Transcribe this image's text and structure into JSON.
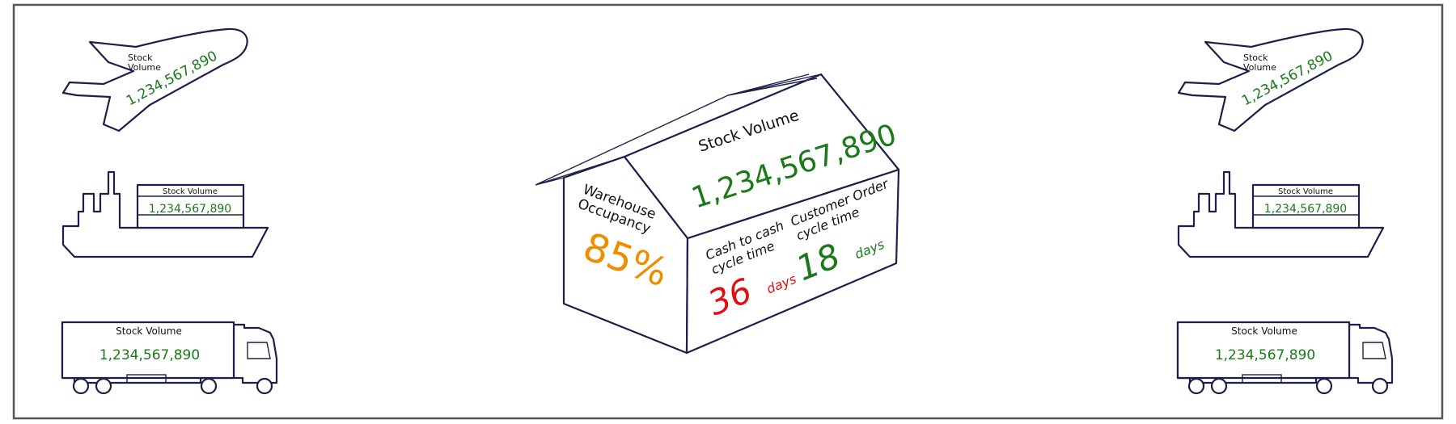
{
  "colors": {
    "outline": "#1c1f4a",
    "value_green": "#1a7a1a",
    "occupancy_orange": "#f08c00",
    "alert_red": "#e01010",
    "text_dark": "#111111",
    "frame": "#555555"
  },
  "icons": [
    "airplane-icon",
    "ship-icon",
    "truck-icon",
    "warehouse-icon"
  ],
  "transport": {
    "left": {
      "airplane": {
        "label": "Stock\nVolume",
        "value": "1,234,567,890"
      },
      "ship": {
        "label": "Stock Volume",
        "value": "1,234,567,890"
      },
      "truck": {
        "label": "Stock Volume",
        "value": "1,234,567,890"
      }
    },
    "right": {
      "airplane": {
        "label": "Stock\nVolume",
        "value": "1,234,567,890"
      },
      "ship": {
        "label": "Stock Volume",
        "value": "1,234,567,890"
      },
      "truck": {
        "label": "Stock Volume",
        "value": "1,234,567,890"
      }
    }
  },
  "warehouse": {
    "roof_label": "Stock Volume",
    "roof_value": "1,234,567,890",
    "occupancy_label": "Warehouse\nOccupancy",
    "occupancy_value": "85%",
    "cash_cycle_label": "Cash to cash\ncycle time",
    "cash_cycle_value": "36",
    "cash_cycle_unit": "days",
    "order_cycle_label": "Customer Order\ncycle time",
    "order_cycle_value": "18",
    "order_cycle_unit": "days"
  }
}
